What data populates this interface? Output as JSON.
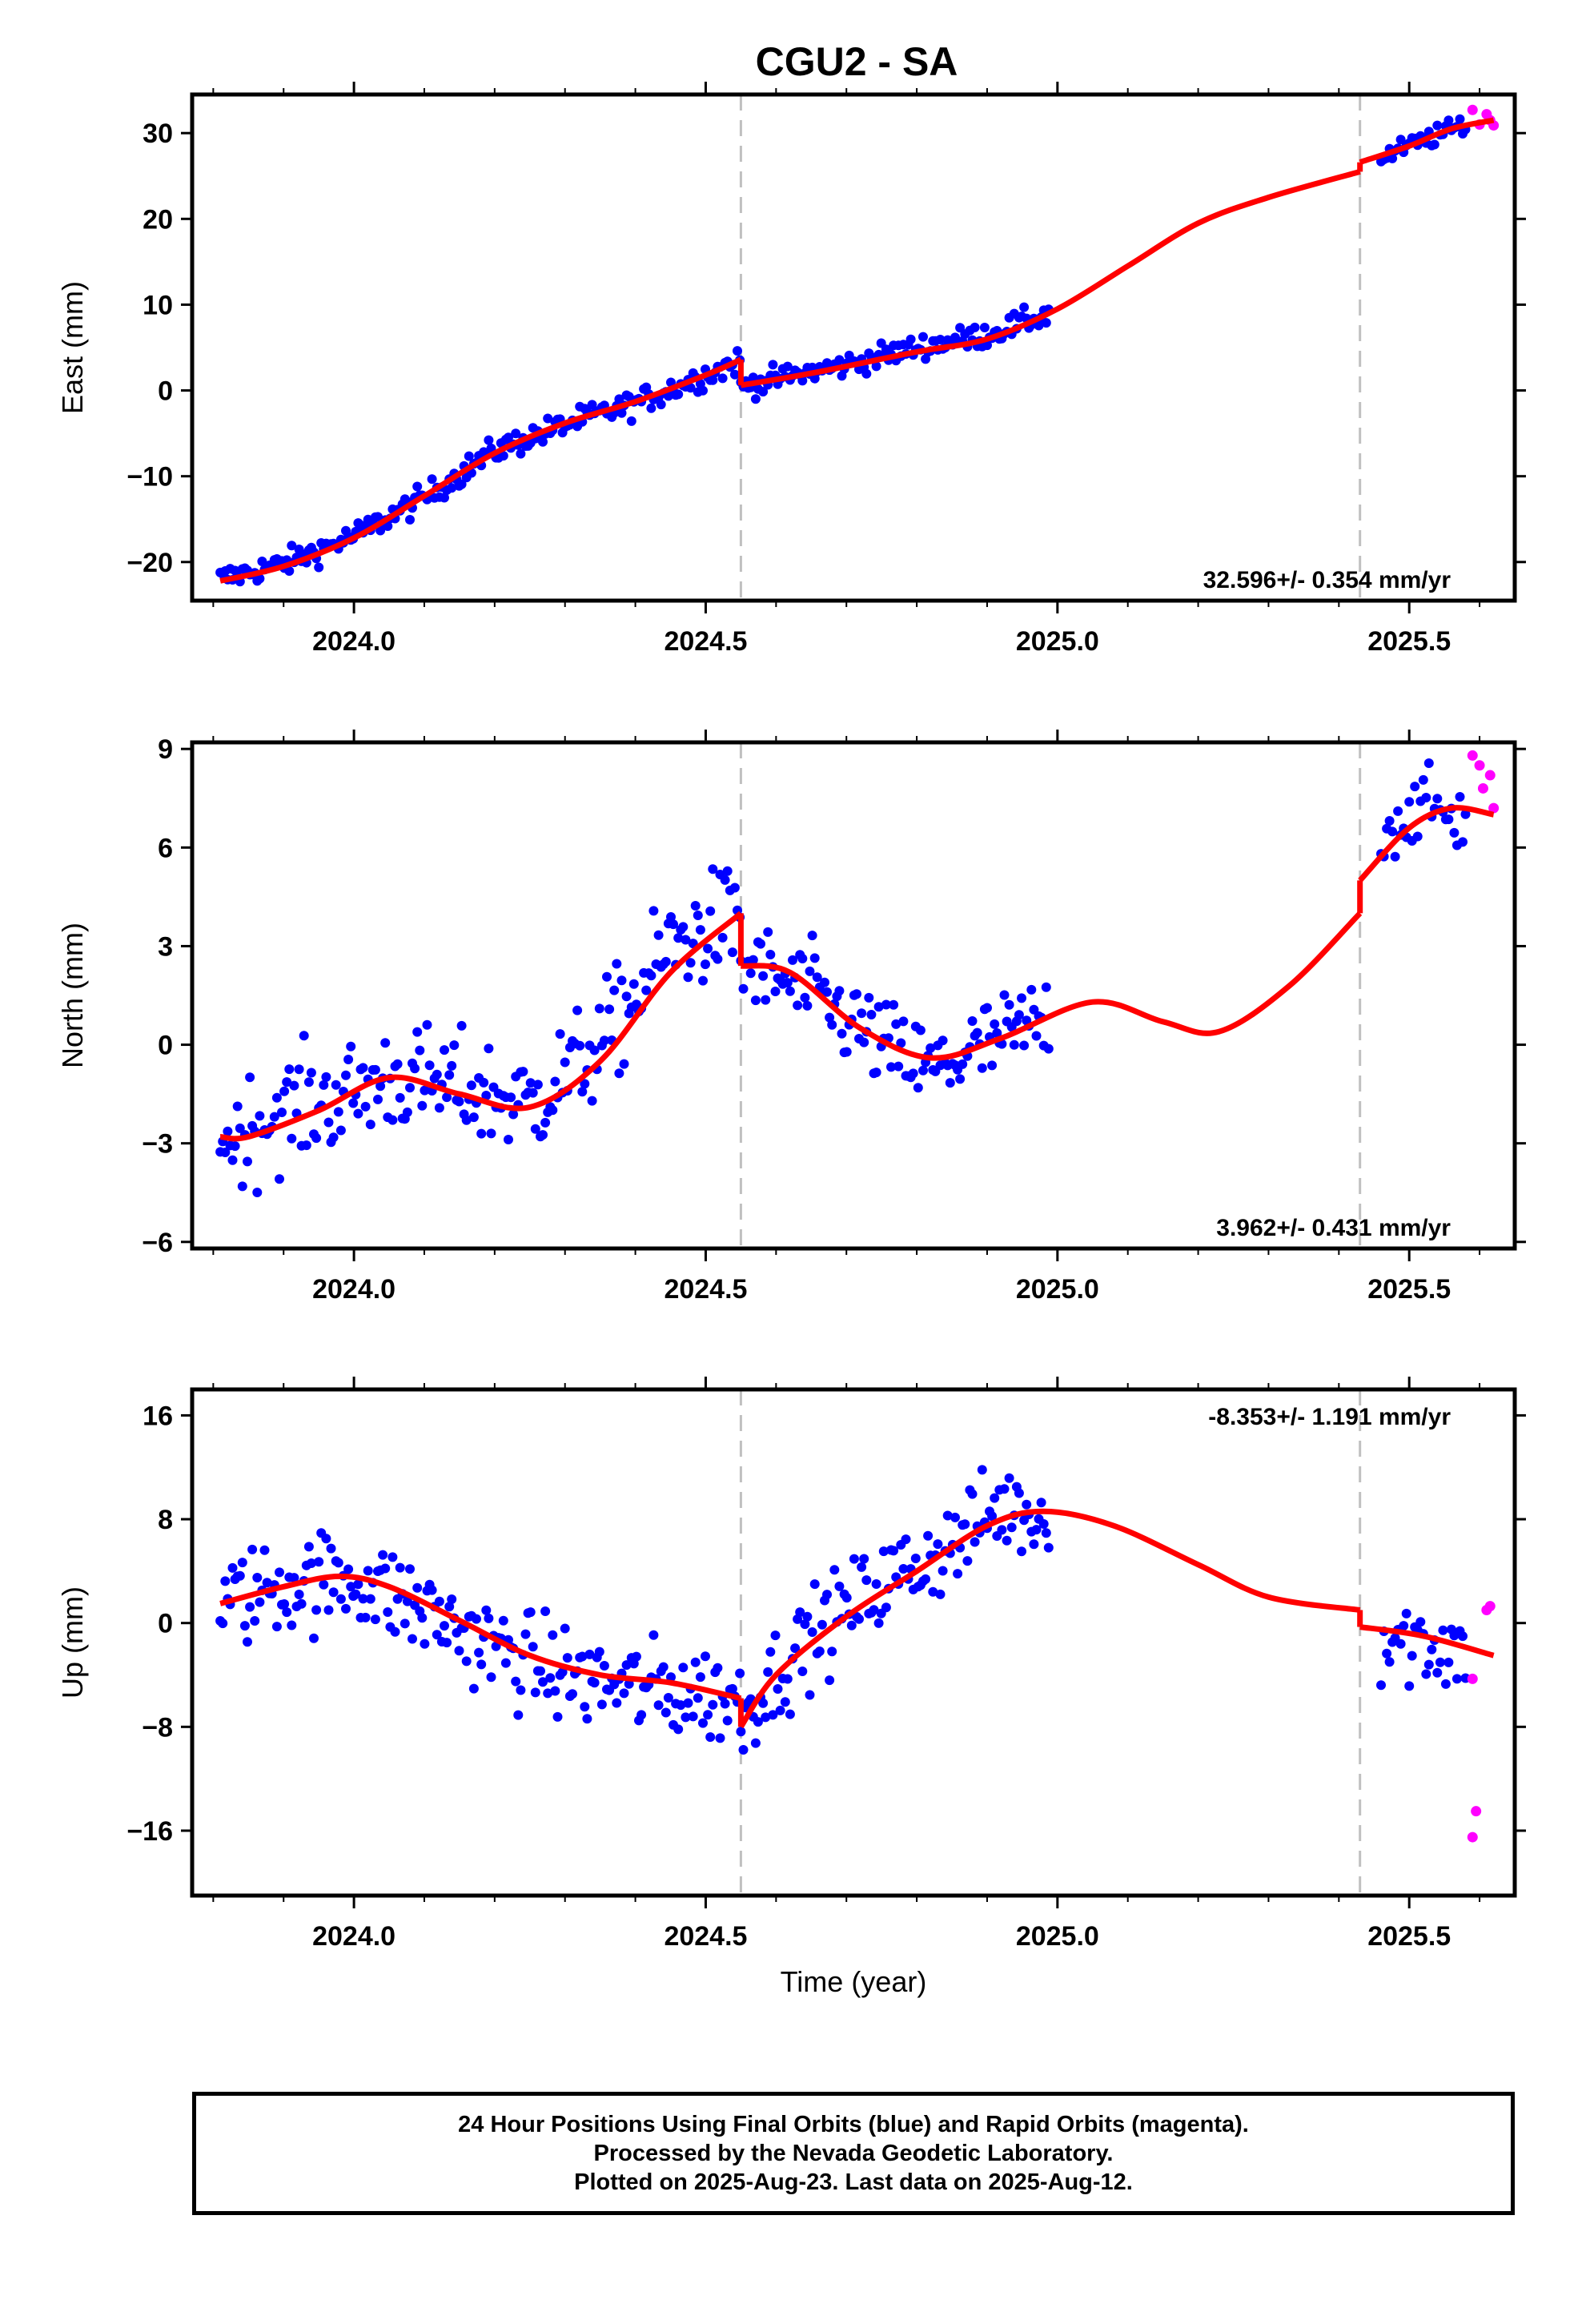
{
  "title": "CGU2 - SA",
  "footer": {
    "line1": "24 Hour Positions Using Final Orbits (blue) and Rapid Orbits (magenta).",
    "line2": "Processed by the Nevada Geodetic Laboratory.",
    "line3": "Plotted on 2025-Aug-23. Last data on 2025-Aug-12."
  },
  "colors": {
    "final": "#0000ff",
    "rapid": "#ff00ff",
    "model": "#ff0000",
    "break": "#c0c0c0"
  },
  "chart_data": [
    {
      "type": "scatter",
      "ylabel": "East (mm)",
      "xlabel": "",
      "rate_text": "32.596+/- 0.354 mm/yr",
      "rate_position": "bottom-right",
      "xlim": [
        2023.77,
        2025.65
      ],
      "ylim": [
        -24.5,
        34.5
      ],
      "xticks": [
        2024.0,
        2024.5,
        2025.0,
        2025.5
      ],
      "xtick_labels": [
        "2024.0",
        "2024.5",
        "2025.0",
        "2025.5"
      ],
      "yticks": [
        -20,
        -10,
        0,
        10,
        20,
        30
      ],
      "ytick_labels": [
        "−20",
        "−10",
        "0",
        "10",
        "20",
        "30"
      ],
      "breaks": [
        2024.55,
        2025.43
      ],
      "final_segments": [
        {
          "x0": 2023.81,
          "x1": 2024.55,
          "anchors": [
            [
              2023.81,
              -22
            ],
            [
              2023.9,
              -20.2
            ],
            [
              2024.0,
              -17
            ],
            [
              2024.1,
              -12.5
            ],
            [
              2024.2,
              -7
            ],
            [
              2024.3,
              -4
            ],
            [
              2024.4,
              -1.5
            ],
            [
              2024.5,
              1.8
            ],
            [
              2024.55,
              3.5
            ]
          ],
          "scatter": 1.3,
          "step": 0.0035
        },
        {
          "x0": 2024.55,
          "x1": 2024.99,
          "anchors": [
            [
              2024.55,
              0.5
            ],
            [
              2024.7,
              3
            ],
            [
              2024.8,
              5
            ],
            [
              2024.9,
              6.5
            ],
            [
              2024.99,
              9
            ]
          ],
          "scatter": 1.2,
          "step": 0.0035
        },
        {
          "x0": 2025.46,
          "x1": 2025.58,
          "anchors": [
            [
              2025.46,
              27
            ],
            [
              2025.5,
              28.5
            ],
            [
              2025.58,
              31
            ]
          ],
          "scatter": 1.0,
          "step": 0.004
        }
      ],
      "rapid_points": [
        [
          2025.59,
          32.7
        ],
        [
          2025.6,
          31
        ],
        [
          2025.61,
          32.2
        ],
        [
          2025.62,
          30.9
        ],
        [
          2025.615,
          31.5
        ]
      ],
      "model_segments": [
        [
          [
            2023.81,
            -22.2
          ],
          [
            2023.9,
            -20.5
          ],
          [
            2024.0,
            -17.2
          ],
          [
            2024.1,
            -12.3
          ],
          [
            2024.2,
            -7.3
          ],
          [
            2024.3,
            -3.8
          ],
          [
            2024.4,
            -1.3
          ],
          [
            2024.5,
            1.8
          ],
          [
            2024.55,
            3.6
          ]
        ],
        [
          [
            2024.55,
            0.6
          ],
          [
            2024.65,
            2
          ],
          [
            2024.8,
            4.5
          ],
          [
            2024.9,
            6
          ],
          [
            2025.0,
            9.5
          ],
          [
            2025.1,
            14.5
          ],
          [
            2025.2,
            19.5
          ],
          [
            2025.3,
            22.5
          ],
          [
            2025.43,
            25.5
          ]
        ],
        [
          [
            2025.43,
            26.6
          ],
          [
            2025.5,
            28.5
          ],
          [
            2025.56,
            30.5
          ],
          [
            2025.62,
            31.5
          ]
        ]
      ]
    },
    {
      "type": "scatter",
      "ylabel": "North (mm)",
      "xlabel": "",
      "rate_text": "3.962+/- 0.431 mm/yr",
      "rate_position": "bottom-right",
      "xlim": [
        2023.77,
        2025.65
      ],
      "ylim": [
        -6.2,
        9.2
      ],
      "xticks": [
        2024.0,
        2024.5,
        2025.0,
        2025.5
      ],
      "xtick_labels": [
        "2024.0",
        "2024.5",
        "2025.0",
        "2025.5"
      ],
      "yticks": [
        -6,
        -3,
        0,
        3,
        6,
        9
      ],
      "ytick_labels": [
        "−6",
        "−3",
        "0",
        "3",
        "6",
        "9"
      ],
      "breaks": [
        2024.55,
        2025.43
      ],
      "final_segments": [
        {
          "x0": 2023.81,
          "x1": 2024.55,
          "anchors": [
            [
              2023.81,
              -3
            ],
            [
              2023.9,
              -2
            ],
            [
              2024.0,
              -1.5
            ],
            [
              2024.05,
              -1
            ],
            [
              2024.15,
              -1.3
            ],
            [
              2024.25,
              -1.8
            ],
            [
              2024.35,
              0
            ],
            [
              2024.45,
              3
            ],
            [
              2024.55,
              4
            ]
          ],
          "scatter": 1.4,
          "step": 0.0035
        },
        {
          "x0": 2024.55,
          "x1": 2024.99,
          "anchors": [
            [
              2024.55,
              2.4
            ],
            [
              2024.65,
              1.6
            ],
            [
              2024.75,
              0
            ],
            [
              2024.82,
              -0.8
            ],
            [
              2024.9,
              0
            ],
            [
              2024.99,
              0.8
            ]
          ],
          "scatter": 1.2,
          "step": 0.0035
        },
        {
          "x0": 2025.46,
          "x1": 2025.58,
          "anchors": [
            [
              2025.46,
              6.5
            ],
            [
              2025.52,
              7.3
            ],
            [
              2025.58,
              6.8
            ]
          ],
          "scatter": 0.9,
          "step": 0.004
        }
      ],
      "rapid_points": [
        [
          2025.59,
          8.8
        ],
        [
          2025.6,
          8.5
        ],
        [
          2025.605,
          7.8
        ],
        [
          2025.615,
          8.2
        ],
        [
          2025.62,
          7.2
        ]
      ],
      "model_segments": [
        [
          [
            2023.81,
            -2.8
          ],
          [
            2023.85,
            -2.8
          ],
          [
            2023.95,
            -2
          ],
          [
            2024.05,
            -1
          ],
          [
            2024.15,
            -1.5
          ],
          [
            2024.25,
            -1.9
          ],
          [
            2024.35,
            -0.5
          ],
          [
            2024.45,
            2.2
          ],
          [
            2024.55,
            4
          ]
        ],
        [
          [
            2024.55,
            2.4
          ],
          [
            2024.62,
            2.2
          ],
          [
            2024.72,
            0.5
          ],
          [
            2024.82,
            -0.4
          ],
          [
            2024.92,
            0.2
          ],
          [
            2025.05,
            1.3
          ],
          [
            2025.15,
            0.7
          ],
          [
            2025.23,
            0.4
          ],
          [
            2025.33,
            1.8
          ],
          [
            2025.43,
            4
          ]
        ],
        [
          [
            2025.43,
            5
          ],
          [
            2025.5,
            6.6
          ],
          [
            2025.56,
            7.2
          ],
          [
            2025.62,
            7
          ]
        ]
      ]
    },
    {
      "type": "scatter",
      "ylabel": "Up (mm)",
      "xlabel": "Time (year)",
      "rate_text": "-8.353+/- 1.191 mm/yr",
      "rate_position": "top-right",
      "xlim": [
        2023.77,
        2025.65
      ],
      "ylim": [
        -21,
        18
      ],
      "xticks": [
        2024.0,
        2024.5,
        2025.0,
        2025.5
      ],
      "xtick_labels": [
        "2024.0",
        "2024.5",
        "2025.0",
        "2025.5"
      ],
      "yticks": [
        -16,
        -8,
        0,
        8,
        16
      ],
      "ytick_labels": [
        "−16",
        "−8",
        "0",
        "8",
        "16"
      ],
      "breaks": [
        2024.55,
        2025.43
      ],
      "final_segments": [
        {
          "x0": 2023.81,
          "x1": 2024.55,
          "anchors": [
            [
              2023.81,
              1.5
            ],
            [
              2023.9,
              3
            ],
            [
              2024.0,
              3.5
            ],
            [
              2024.1,
              1
            ],
            [
              2024.2,
              -2
            ],
            [
              2024.3,
              -4
            ],
            [
              2024.4,
              -5
            ],
            [
              2024.5,
              -5.5
            ],
            [
              2024.55,
              -6
            ]
          ],
          "scatter": 3.2,
          "step": 0.0035
        },
        {
          "x0": 2024.55,
          "x1": 2024.99,
          "anchors": [
            [
              2024.55,
              -7
            ],
            [
              2024.65,
              -1
            ],
            [
              2024.75,
              3
            ],
            [
              2024.85,
              6
            ],
            [
              2024.92,
              9
            ],
            [
              2024.99,
              8
            ]
          ],
          "scatter": 3.0,
          "step": 0.0035
        },
        {
          "x0": 2025.46,
          "x1": 2025.58,
          "anchors": [
            [
              2025.46,
              -1
            ],
            [
              2025.52,
              -1.5
            ],
            [
              2025.58,
              -2
            ]
          ],
          "scatter": 3.2,
          "step": 0.004
        }
      ],
      "rapid_points": [
        [
          2025.59,
          -4.3
        ],
        [
          2025.595,
          -14.5
        ],
        [
          2025.59,
          -16.5
        ],
        [
          2025.61,
          1
        ],
        [
          2025.615,
          1.3
        ]
      ],
      "model_segments": [
        [
          [
            2023.81,
            1.5
          ],
          [
            2023.9,
            2.8
          ],
          [
            2023.98,
            3.6
          ],
          [
            2024.05,
            2.8
          ],
          [
            2024.15,
            0.2
          ],
          [
            2024.25,
            -2.5
          ],
          [
            2024.35,
            -4
          ],
          [
            2024.45,
            -4.6
          ],
          [
            2024.55,
            -5.8
          ]
        ],
        [
          [
            2024.55,
            -8
          ],
          [
            2024.6,
            -4
          ],
          [
            2024.7,
            0.5
          ],
          [
            2024.8,
            4
          ],
          [
            2024.9,
            7.5
          ],
          [
            2024.98,
            8.6
          ],
          [
            2025.08,
            7.5
          ],
          [
            2025.2,
            4.5
          ],
          [
            2025.3,
            2
          ],
          [
            2025.43,
            1
          ]
        ],
        [
          [
            2025.43,
            -0.3
          ],
          [
            2025.52,
            -1
          ],
          [
            2025.62,
            -2.5
          ]
        ]
      ]
    }
  ]
}
